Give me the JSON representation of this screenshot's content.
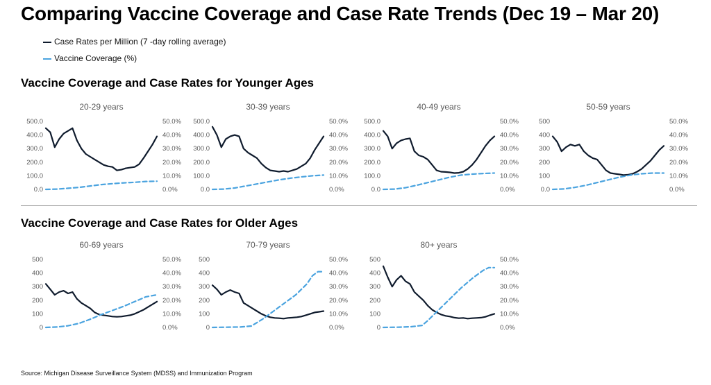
{
  "title": "Comparing Vaccine Coverage and Case Rate Trends (Dec 19 – Mar 20)",
  "legend": {
    "case_label": "Case Rates per Million (7  -day rolling average)",
    "vaccine_label": "Vaccine Coverage (%)"
  },
  "sections": {
    "young_title": "Vaccine Coverage and Case Rates for Younger Ages",
    "old_title": "Vaccine Coverage and Case Rates for Older Ages"
  },
  "source": "Source: Michigan Disease Surveillance System (MDSS) and Immunization Program",
  "colors": {
    "case": "#0f1b2d",
    "vaccine": "#4aa3df"
  },
  "chart_data": [
    {
      "type": "line",
      "title": "20-29 years",
      "left_ticks": [
        "0.0",
        "100.0",
        "200.0",
        "300.0",
        "400.0",
        "500.0"
      ],
      "right_ticks": [
        "0.0%",
        "10.0%",
        "20.0%",
        "30.0%",
        "40.0%",
        "50.0%"
      ],
      "ylim_left": [
        0,
        500
      ],
      "ylim_right": [
        0,
        50
      ],
      "series": [
        {
          "name": "Case Rates per Million (7  -day rolling average)",
          "axis": "left",
          "style": "solid",
          "x": [
            0,
            0.04,
            0.08,
            0.12,
            0.16,
            0.2,
            0.24,
            0.28,
            0.32,
            0.36,
            0.4,
            0.44,
            0.48,
            0.52,
            0.56,
            0.6,
            0.64,
            0.68,
            0.72,
            0.76,
            0.8,
            0.84,
            0.88,
            0.92,
            0.96,
            1
          ],
          "values": [
            450,
            420,
            310,
            370,
            410,
            430,
            450,
            360,
            300,
            260,
            240,
            220,
            200,
            180,
            170,
            165,
            140,
            145,
            155,
            160,
            165,
            185,
            230,
            280,
            330,
            390
          ]
        },
        {
          "name": "Vaccine Coverage (%)",
          "axis": "right",
          "style": "dashed",
          "x": [
            0,
            0.1,
            0.2,
            0.3,
            0.4,
            0.5,
            0.6,
            0.7,
            0.8,
            0.9,
            1
          ],
          "values": [
            0,
            0.2,
            0.8,
            1.5,
            2.5,
            3.5,
            4.2,
            4.8,
            5.2,
            5.8,
            6
          ]
        }
      ]
    },
    {
      "type": "line",
      "title": "30-39 years",
      "left_ticks": [
        "0.0",
        "100.0",
        "200.0",
        "300.0",
        "400.0",
        "500.0"
      ],
      "right_ticks": [
        "0.0%",
        "10.0%",
        "20.0%",
        "30.0%",
        "40.0%",
        "50.0%"
      ],
      "ylim_left": [
        0,
        500
      ],
      "ylim_right": [
        0,
        50
      ],
      "series": [
        {
          "name": "Case Rates per Million (7  -day rolling average)",
          "axis": "left",
          "style": "solid",
          "x": [
            0,
            0.04,
            0.08,
            0.12,
            0.16,
            0.2,
            0.24,
            0.28,
            0.32,
            0.36,
            0.4,
            0.44,
            0.48,
            0.52,
            0.56,
            0.6,
            0.64,
            0.68,
            0.72,
            0.76,
            0.8,
            0.84,
            0.88,
            0.92,
            0.96,
            1
          ],
          "values": [
            460,
            400,
            310,
            370,
            390,
            400,
            390,
            300,
            270,
            250,
            230,
            190,
            160,
            140,
            135,
            130,
            135,
            130,
            140,
            150,
            170,
            190,
            230,
            290,
            340,
            390
          ]
        },
        {
          "name": "Vaccine Coverage (%)",
          "axis": "right",
          "style": "dashed",
          "x": [
            0,
            0.1,
            0.2,
            0.3,
            0.4,
            0.5,
            0.6,
            0.7,
            0.8,
            0.9,
            1
          ],
          "values": [
            0,
            0.2,
            1,
            2.5,
            4,
            5.5,
            7,
            8.2,
            9.2,
            10,
            10.5
          ]
        }
      ]
    },
    {
      "type": "line",
      "title": "40-49 years",
      "left_ticks": [
        "0.0",
        "100.0",
        "200.0",
        "300.0",
        "400.0",
        "500.0"
      ],
      "right_ticks": [
        "0.0%",
        "10.0%",
        "20.0%",
        "30.0%",
        "40.0%",
        "50.0%"
      ],
      "ylim_left": [
        0,
        500
      ],
      "ylim_right": [
        0,
        50
      ],
      "series": [
        {
          "name": "Case Rates per Million (7  -day rolling average)",
          "axis": "left",
          "style": "solid",
          "x": [
            0,
            0.04,
            0.08,
            0.12,
            0.16,
            0.2,
            0.24,
            0.28,
            0.32,
            0.36,
            0.4,
            0.44,
            0.48,
            0.52,
            0.56,
            0.6,
            0.64,
            0.68,
            0.72,
            0.76,
            0.8,
            0.84,
            0.88,
            0.92,
            0.96,
            1
          ],
          "values": [
            430,
            390,
            300,
            340,
            360,
            370,
            375,
            280,
            250,
            240,
            220,
            180,
            140,
            130,
            128,
            125,
            120,
            122,
            130,
            150,
            180,
            220,
            270,
            320,
            360,
            390
          ]
        },
        {
          "name": "Vaccine Coverage (%)",
          "axis": "right",
          "style": "dashed",
          "x": [
            0,
            0.1,
            0.2,
            0.3,
            0.4,
            0.5,
            0.6,
            0.7,
            0.8,
            0.9,
            1
          ],
          "values": [
            0,
            0.2,
            1.2,
            3,
            5,
            7,
            9,
            10.5,
            11.2,
            11.7,
            12
          ]
        }
      ]
    },
    {
      "type": "line",
      "title": "50-59 years",
      "left_ticks": [
        "0.0",
        "100",
        "200",
        "300",
        "400",
        "500"
      ],
      "right_ticks": [
        "0.0%",
        "10.0%",
        "20.0%",
        "30.0%",
        "40.0%",
        "50.0%"
      ],
      "ylim_left": [
        0,
        500
      ],
      "ylim_right": [
        0,
        50
      ],
      "series": [
        {
          "name": "Case Rates per Million (7  -day rolling average)",
          "axis": "left",
          "style": "solid",
          "x": [
            0,
            0.04,
            0.08,
            0.12,
            0.16,
            0.2,
            0.24,
            0.28,
            0.32,
            0.36,
            0.4,
            0.44,
            0.48,
            0.52,
            0.56,
            0.6,
            0.64,
            0.68,
            0.72,
            0.76,
            0.8,
            0.84,
            0.88,
            0.92,
            0.96,
            1
          ],
          "values": [
            390,
            350,
            280,
            310,
            330,
            320,
            330,
            280,
            250,
            230,
            220,
            180,
            140,
            120,
            115,
            110,
            105,
            108,
            115,
            130,
            150,
            180,
            210,
            250,
            290,
            320
          ]
        },
        {
          "name": "Vaccine Coverage (%)",
          "axis": "right",
          "style": "dashed",
          "x": [
            0,
            0.1,
            0.2,
            0.3,
            0.4,
            0.5,
            0.6,
            0.7,
            0.8,
            0.9,
            1
          ],
          "values": [
            0,
            0.3,
            1.5,
            3,
            5,
            7,
            9,
            10.5,
            11.5,
            12,
            12
          ]
        }
      ]
    },
    {
      "type": "line",
      "title": "60-69 years",
      "left_ticks": [
        "0",
        "100",
        "200",
        "300",
        "400",
        "500"
      ],
      "right_ticks": [
        "0.0%",
        "10.0%",
        "20.0%",
        "30.0%",
        "40.0%",
        "50.0%"
      ],
      "ylim_left": [
        0,
        500
      ],
      "ylim_right": [
        0,
        50
      ],
      "series": [
        {
          "name": "Case Rates per Million (7  -day rolling average)",
          "axis": "left",
          "style": "solid",
          "x": [
            0,
            0.04,
            0.08,
            0.12,
            0.16,
            0.2,
            0.24,
            0.28,
            0.32,
            0.36,
            0.4,
            0.44,
            0.48,
            0.52,
            0.56,
            0.6,
            0.64,
            0.68,
            0.72,
            0.76,
            0.8,
            0.84,
            0.88,
            0.92,
            0.96,
            1
          ],
          "values": [
            320,
            280,
            240,
            260,
            270,
            250,
            260,
            210,
            180,
            160,
            140,
            110,
            95,
            90,
            85,
            80,
            78,
            80,
            85,
            90,
            100,
            115,
            130,
            150,
            170,
            190
          ]
        },
        {
          "name": "Vaccine Coverage (%)",
          "axis": "right",
          "style": "dashed",
          "x": [
            0,
            0.1,
            0.2,
            0.3,
            0.4,
            0.5,
            0.6,
            0.7,
            0.8,
            0.9,
            1
          ],
          "values": [
            0,
            0.3,
            1.2,
            3,
            6,
            9.5,
            12.5,
            15.5,
            19,
            22.5,
            24
          ]
        }
      ]
    },
    {
      "type": "line",
      "title": "70-79 years",
      "left_ticks": [
        "0",
        "100",
        "200",
        "300",
        "400",
        "500"
      ],
      "right_ticks": [
        "0.0%",
        "10.0%",
        "20.0%",
        "30.0%",
        "40.0%",
        "50.0%"
      ],
      "ylim_left": [
        0,
        500
      ],
      "ylim_right": [
        0,
        50
      ],
      "series": [
        {
          "name": "Case Rates per Million (7  -day rolling average)",
          "axis": "left",
          "style": "solid",
          "x": [
            0,
            0.04,
            0.08,
            0.12,
            0.16,
            0.2,
            0.24,
            0.28,
            0.32,
            0.36,
            0.4,
            0.44,
            0.48,
            0.52,
            0.56,
            0.6,
            0.64,
            0.68,
            0.72,
            0.76,
            0.8,
            0.84,
            0.88,
            0.92,
            0.96,
            1
          ],
          "values": [
            310,
            280,
            240,
            260,
            275,
            260,
            250,
            180,
            160,
            140,
            120,
            100,
            85,
            75,
            70,
            68,
            65,
            70,
            72,
            75,
            80,
            90,
            100,
            110,
            115,
            120
          ]
        },
        {
          "name": "Vaccine Coverage (%)",
          "axis": "right",
          "style": "dashed",
          "x": [
            0,
            0.15,
            0.25,
            0.35,
            0.45,
            0.55,
            0.65,
            0.75,
            0.85,
            0.9,
            0.95,
            1
          ],
          "values": [
            0,
            0.2,
            0.3,
            1,
            6,
            12,
            18,
            24,
            32,
            38,
            41,
            41
          ]
        }
      ]
    },
    {
      "type": "line",
      "title": "80+ years",
      "left_ticks": [
        "0",
        "100",
        "200",
        "300",
        "400",
        "500"
      ],
      "right_ticks": [
        "0.0%",
        "10.0%",
        "20.0%",
        "30.0%",
        "40.0%",
        "50.0%"
      ],
      "ylim_left": [
        0,
        500
      ],
      "ylim_right": [
        0,
        50
      ],
      "series": [
        {
          "name": "Case Rates per Million (7  -day rolling average)",
          "axis": "left",
          "style": "solid",
          "x": [
            0,
            0.04,
            0.08,
            0.12,
            0.16,
            0.2,
            0.24,
            0.28,
            0.32,
            0.36,
            0.4,
            0.44,
            0.48,
            0.52,
            0.56,
            0.6,
            0.64,
            0.68,
            0.72,
            0.76,
            0.8,
            0.84,
            0.88,
            0.92,
            0.96,
            1
          ],
          "values": [
            450,
            370,
            300,
            350,
            380,
            340,
            320,
            260,
            230,
            200,
            160,
            130,
            110,
            95,
            85,
            80,
            72,
            68,
            70,
            65,
            68,
            70,
            72,
            78,
            90,
            100
          ]
        },
        {
          "name": "Vaccine Coverage (%)",
          "axis": "right",
          "style": "dashed",
          "x": [
            0,
            0.15,
            0.25,
            0.35,
            0.4,
            0.5,
            0.6,
            0.7,
            0.8,
            0.9,
            0.95,
            1
          ],
          "values": [
            0,
            0.2,
            0.5,
            1.5,
            5,
            13,
            21,
            29,
            36,
            42,
            44,
            44
          ]
        }
      ]
    }
  ]
}
